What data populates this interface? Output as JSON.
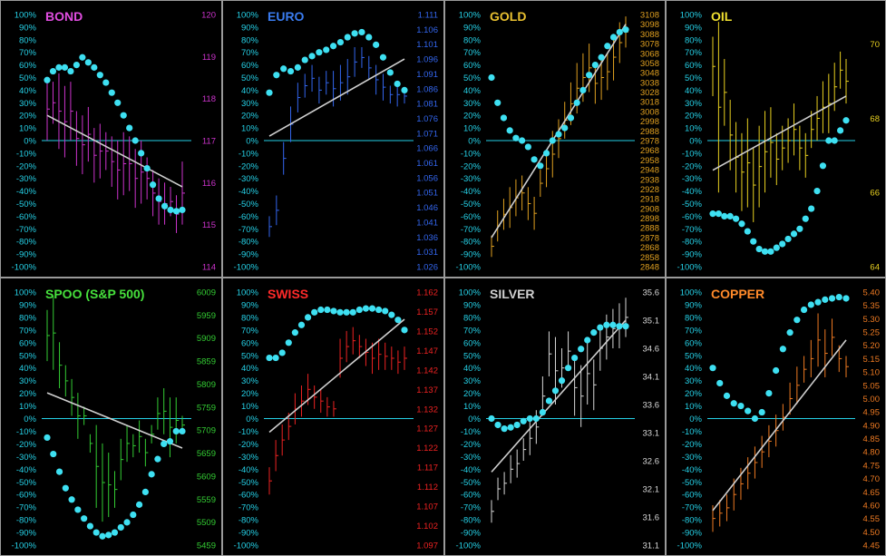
{
  "colors": {
    "background": "#000000",
    "border": "#9a9a9a",
    "pct_axis": "#25d0e6",
    "zero_line": "#25d0e6",
    "dots": "#3ee0f2",
    "trend": "#cfcfcf"
  },
  "pct_ticks": [
    "100%",
    "90%",
    "80%",
    "70%",
    "60%",
    "50%",
    "40%",
    "30%",
    "20%",
    "10%",
    "0%",
    "-10%",
    "-20%",
    "-30%",
    "-40%",
    "-50%",
    "-60%",
    "-70%",
    "-80%",
    "-90%",
    "-100%"
  ],
  "chart_data": [
    {
      "title": "BOND",
      "title_color": "#e04de0",
      "color": "#cc33cc",
      "type": "ohlc_with_oscillator",
      "price_ticks": [
        "120",
        "119",
        "118",
        "117",
        "116",
        "115",
        "114"
      ],
      "price_range": [
        114,
        120
      ],
      "bars": [
        [
          117.0,
          118.5
        ],
        [
          117.4,
          118.4
        ],
        [
          116.8,
          118.6
        ],
        [
          116.6,
          118.3
        ],
        [
          117.0,
          118.4
        ],
        [
          116.4,
          117.7
        ],
        [
          116.2,
          117.6
        ],
        [
          116.5,
          117.8
        ],
        [
          116.0,
          117.3
        ],
        [
          116.1,
          117.4
        ],
        [
          116.3,
          117.2
        ],
        [
          115.9,
          117.1
        ],
        [
          115.6,
          117.0
        ],
        [
          115.7,
          117.2
        ],
        [
          115.8,
          117.1
        ],
        [
          115.4,
          116.8
        ],
        [
          115.5,
          117.0
        ],
        [
          115.6,
          116.6
        ],
        [
          115.2,
          116.3
        ],
        [
          115.0,
          116.1
        ],
        [
          115.0,
          116.0
        ],
        [
          115.2,
          115.9
        ],
        [
          114.8,
          115.7
        ],
        [
          115.0,
          116.5
        ]
      ],
      "trend": [
        [
          0,
          117.6
        ],
        [
          23,
          115.9
        ]
      ],
      "oscillator": [
        48,
        55,
        58,
        58,
        55,
        60,
        66,
        62,
        58,
        52,
        46,
        38,
        30,
        20,
        10,
        0,
        -10,
        -22,
        -35,
        -46,
        -52,
        -55,
        -56,
        -55
      ]
    },
    {
      "title": "EURO",
      "title_color": "#3a7cf0",
      "color": "#3366ee",
      "type": "ohlc_with_oscillator",
      "price_ticks": [
        "1.111",
        "1.106",
        "1.101",
        "1.096",
        "1.091",
        "1.086",
        "1.081",
        "1.076",
        "1.071",
        "1.066",
        "1.061",
        "1.056",
        "1.051",
        "1.046",
        "1.041",
        "1.036",
        "1.031",
        "1.026"
      ],
      "price_range": [
        1.026,
        1.111
      ],
      "bars": [
        [
          1.036,
          1.043
        ],
        [
          1.04,
          1.05
        ],
        [
          1.057,
          1.068
        ],
        [
          1.068,
          1.08
        ],
        [
          1.078,
          1.088
        ],
        [
          1.083,
          1.091
        ],
        [
          1.085,
          1.094
        ],
        [
          1.081,
          1.09
        ],
        [
          1.084,
          1.092
        ],
        [
          1.08,
          1.092
        ],
        [
          1.082,
          1.094
        ],
        [
          1.084,
          1.096
        ],
        [
          1.09,
          1.1
        ],
        [
          1.093,
          1.1
        ],
        [
          1.089,
          1.097
        ],
        [
          1.084,
          1.094
        ],
        [
          1.082,
          1.091
        ],
        [
          1.081,
          1.087
        ],
        [
          1.08,
          1.088
        ],
        [
          1.081,
          1.086
        ]
      ],
      "trend": [
        [
          0,
          1.07
        ],
        [
          19,
          1.096
        ]
      ],
      "oscillator": [
        38,
        52,
        57,
        55,
        58,
        64,
        67,
        70,
        72,
        75,
        78,
        82,
        85,
        86,
        82,
        76,
        66,
        54,
        45,
        40
      ]
    },
    {
      "title": "GOLD",
      "title_color": "#e8c030",
      "color": "#e0a020",
      "type": "ohlc_with_oscillator",
      "price_ticks": [
        "3108",
        "3098",
        "3088",
        "3078",
        "3068",
        "3058",
        "3048",
        "3038",
        "3028",
        "3018",
        "3008",
        "2998",
        "2988",
        "2978",
        "2968",
        "2958",
        "2948",
        "2938",
        "2928",
        "2918",
        "2908",
        "2898",
        "2888",
        "2878",
        "2868",
        "2858",
        "2848"
      ],
      "price_range": [
        2848,
        3108
      ],
      "bars": [
        [
          2858,
          2880
        ],
        [
          2874,
          2906
        ],
        [
          2886,
          2918
        ],
        [
          2888,
          2930
        ],
        [
          2900,
          2938
        ],
        [
          2906,
          2942
        ],
        [
          2896,
          2930
        ],
        [
          2886,
          2920
        ],
        [
          2920,
          2948
        ],
        [
          2930,
          2968
        ],
        [
          2940,
          2988
        ],
        [
          2960,
          3000
        ],
        [
          2980,
          3018
        ],
        [
          2994,
          3038
        ],
        [
          3006,
          3058
        ],
        [
          3018,
          3068
        ],
        [
          3028,
          3078
        ],
        [
          3016,
          3058
        ],
        [
          3020,
          3066
        ],
        [
          3030,
          3068
        ],
        [
          3040,
          3088
        ],
        [
          3058,
          3100
        ],
        [
          3074,
          3106
        ]
      ],
      "trend": [
        [
          0,
          2878
        ],
        [
          22,
          3098
        ]
      ],
      "oscillator": [
        50,
        30,
        18,
        8,
        2,
        0,
        -5,
        -15,
        -20,
        -10,
        0,
        5,
        10,
        18,
        30,
        40,
        52,
        60,
        66,
        75,
        82,
        86,
        88
      ]
    },
    {
      "title": "OIL",
      "title_color": "#f0e030",
      "color": "#e8d020",
      "type": "ohlc_with_oscillator",
      "price_ticks": [
        "70",
        "68",
        "66",
        "64"
      ],
      "price_range": [
        64,
        70.8
      ],
      "bars": [
        [
          68.6,
          70.2
        ],
        [
          66.0,
          70.6
        ],
        [
          67.8,
          69.6
        ],
        [
          66.6,
          68.5
        ],
        [
          66.0,
          67.9
        ],
        [
          65.5,
          67.6
        ],
        [
          65.6,
          68.0
        ],
        [
          65.2,
          67.2
        ],
        [
          65.6,
          67.8
        ],
        [
          66.0,
          68.2
        ],
        [
          66.4,
          68.3
        ],
        [
          66.2,
          67.6
        ],
        [
          66.6,
          67.8
        ],
        [
          66.8,
          68.0
        ],
        [
          67.0,
          68.4
        ],
        [
          66.6,
          67.8
        ],
        [
          66.4,
          67.6
        ],
        [
          67.2,
          68.2
        ],
        [
          67.4,
          68.6
        ],
        [
          67.6,
          69.0
        ],
        [
          67.6,
          69.2
        ],
        [
          68.2,
          69.5
        ],
        [
          68.8,
          69.8
        ],
        [
          68.4,
          69.6
        ]
      ],
      "trend": [
        [
          0,
          66.6
        ],
        [
          23,
          68.6
        ]
      ],
      "oscillator": [
        -58,
        -58,
        -60,
        -60,
        -62,
        -66,
        -72,
        -80,
        -86,
        -88,
        -88,
        -85,
        -82,
        -78,
        -74,
        -70,
        -62,
        -54,
        -40,
        -20,
        0,
        0,
        8,
        16
      ]
    },
    {
      "title": "SPOO (S&P 500)",
      "title_color": "#46e03c",
      "color": "#33cc33",
      "type": "ohlc_with_oscillator",
      "price_ticks": [
        "6009",
        "5959",
        "5909",
        "5859",
        "5809",
        "5759",
        "5709",
        "5659",
        "5609",
        "5559",
        "5509",
        "5459"
      ],
      "price_range": [
        5459,
        6009
      ],
      "bars": [
        [
          5859,
          5970
        ],
        [
          5840,
          6000
        ],
        [
          5800,
          5900
        ],
        [
          5782,
          5850
        ],
        [
          5740,
          5820
        ],
        [
          5690,
          5790
        ],
        [
          5720,
          5760
        ],
        [
          5660,
          5700
        ],
        [
          5540,
          5720
        ],
        [
          5510,
          5680
        ],
        [
          5520,
          5660
        ],
        [
          5540,
          5620
        ],
        [
          5600,
          5690
        ],
        [
          5640,
          5720
        ],
        [
          5650,
          5700
        ],
        [
          5660,
          5730
        ],
        [
          5630,
          5690
        ],
        [
          5680,
          5720
        ],
        [
          5710,
          5780
        ],
        [
          5700,
          5800
        ],
        [
          5650,
          5780
        ],
        [
          5680,
          5780
        ],
        [
          5700,
          5740
        ]
      ],
      "trend": [
        [
          0,
          5790
        ],
        [
          22,
          5670
        ]
      ],
      "oscillator": [
        -15,
        -28,
        -42,
        -55,
        -64,
        -72,
        -79,
        -85,
        -90,
        -93,
        -92,
        -90,
        -86,
        -82,
        -76,
        -68,
        -58,
        -44,
        -32,
        -20,
        -18,
        -10,
        -10
      ]
    },
    {
      "title": "SWISS",
      "title_color": "#ff2a2a",
      "color": "#ee2222",
      "type": "ohlc_with_oscillator",
      "price_ticks": [
        "1.162",
        "1.157",
        "1.152",
        "1.147",
        "1.142",
        "1.137",
        "1.132",
        "1.127",
        "1.122",
        "1.117",
        "1.112",
        "1.107",
        "1.102",
        "1.097"
      ],
      "price_range": [
        1.097,
        1.162
      ],
      "bars": [
        [
          1.11,
          1.117
        ],
        [
          1.116,
          1.124
        ],
        [
          1.12,
          1.128
        ],
        [
          1.124,
          1.131
        ],
        [
          1.128,
          1.136
        ],
        [
          1.13,
          1.138
        ],
        [
          1.133,
          1.141
        ],
        [
          1.132,
          1.138
        ],
        [
          1.131,
          1.137
        ],
        [
          1.13,
          1.135
        ],
        [
          1.13,
          1.134
        ],
        [
          1.14,
          1.15
        ],
        [
          1.144,
          1.152
        ],
        [
          1.146,
          1.153
        ],
        [
          1.145,
          1.151
        ],
        [
          1.143,
          1.15
        ],
        [
          1.141,
          1.149
        ],
        [
          1.142,
          1.15
        ],
        [
          1.142,
          1.149
        ],
        [
          1.142,
          1.148
        ],
        [
          1.141,
          1.147
        ],
        [
          1.142,
          1.148
        ]
      ],
      "trend": [
        [
          0,
          1.126
        ],
        [
          21,
          1.155
        ]
      ],
      "oscillator": [
        48,
        48,
        52,
        60,
        68,
        74,
        80,
        84,
        86,
        86,
        85,
        84,
        84,
        84,
        86,
        87,
        87,
        86,
        85,
        82,
        78,
        70
      ]
    },
    {
      "title": "SILVER",
      "title_color": "#d0d0d0",
      "color": "#d8d8d8",
      "type": "ohlc_with_oscillator",
      "price_ticks": [
        "35.6",
        "35.1",
        "34.6",
        "34.1",
        "33.6",
        "33.1",
        "32.6",
        "32.1",
        "31.6",
        "31.1"
      ],
      "price_range": [
        31.1,
        35.6
      ],
      "bars": [
        [
          31.5,
          31.9
        ],
        [
          31.9,
          32.3
        ],
        [
          32.0,
          32.4
        ],
        [
          32.2,
          32.7
        ],
        [
          32.3,
          32.8
        ],
        [
          32.6,
          33.0
        ],
        [
          32.7,
          33.3
        ],
        [
          32.9,
          33.5
        ],
        [
          33.4,
          34.1
        ],
        [
          34.1,
          34.9
        ],
        [
          33.6,
          34.8
        ],
        [
          33.9,
          34.6
        ],
        [
          34.2,
          34.9
        ],
        [
          33.4,
          34.4
        ],
        [
          33.2,
          34.3
        ],
        [
          33.6,
          34.7
        ],
        [
          33.5,
          34.4
        ],
        [
          34.2,
          35.0
        ],
        [
          34.4,
          35.2
        ],
        [
          34.6,
          35.3
        ],
        [
          34.6,
          35.4
        ],
        [
          34.8,
          35.5
        ]
      ],
      "trend": [
        [
          0,
          32.4
        ],
        [
          21,
          35.1
        ]
      ],
      "oscillator": [
        0,
        -5,
        -8,
        -7,
        -5,
        -2,
        0,
        0,
        5,
        14,
        22,
        30,
        40,
        48,
        55,
        62,
        68,
        72,
        74,
        74,
        73,
        73
      ]
    },
    {
      "title": "COPPER",
      "title_color": "#ff8a2a",
      "color": "#ee7a22",
      "type": "ohlc_with_oscillator",
      "price_ticks": [
        "5.40",
        "5.35",
        "5.30",
        "5.25",
        "5.20",
        "5.15",
        "5.10",
        "5.05",
        "5.00",
        "4.95",
        "4.90",
        "4.85",
        "4.80",
        "4.75",
        "4.70",
        "4.65",
        "4.60",
        "4.55",
        "4.50",
        "4.45"
      ],
      "price_range": [
        4.45,
        5.4
      ],
      "bars": [
        [
          4.5,
          4.6
        ],
        [
          4.52,
          4.62
        ],
        [
          4.54,
          4.64
        ],
        [
          4.58,
          4.7
        ],
        [
          4.62,
          4.74
        ],
        [
          4.66,
          4.78
        ],
        [
          4.7,
          4.82
        ],
        [
          4.74,
          4.86
        ],
        [
          4.78,
          4.9
        ],
        [
          4.82,
          4.94
        ],
        [
          4.88,
          4.98
        ],
        [
          4.94,
          5.06
        ],
        [
          4.98,
          5.12
        ],
        [
          5.06,
          5.16
        ],
        [
          5.08,
          5.22
        ],
        [
          5.12,
          5.32
        ],
        [
          5.08,
          5.26
        ],
        [
          5.16,
          5.3
        ],
        [
          5.1,
          5.2
        ],
        [
          5.08,
          5.16
        ]
      ],
      "trend": [
        [
          0,
          4.58
        ],
        [
          19,
          5.22
        ]
      ],
      "oscillator": [
        40,
        28,
        18,
        12,
        10,
        6,
        0,
        5,
        20,
        38,
        55,
        68,
        78,
        86,
        90,
        92,
        94,
        95,
        96,
        95
      ]
    }
  ]
}
